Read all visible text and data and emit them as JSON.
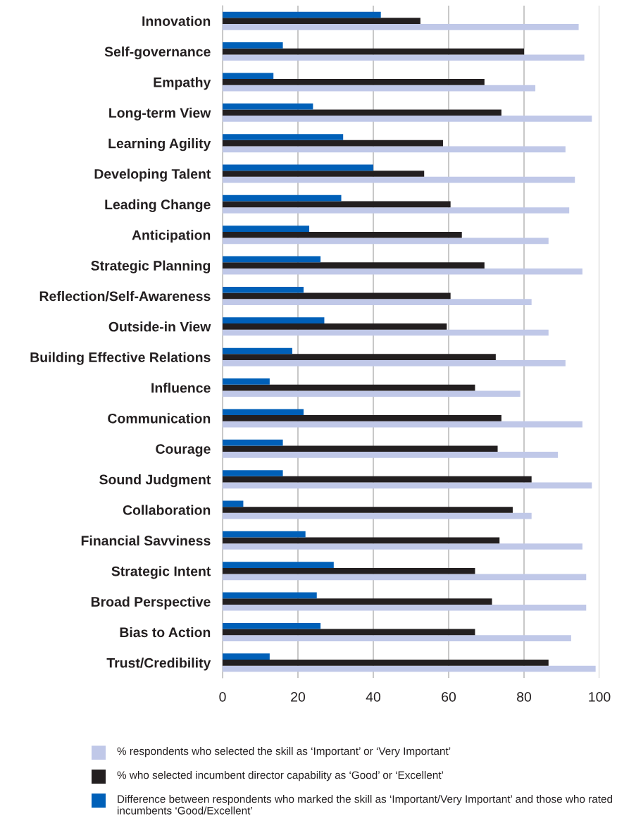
{
  "chart_data": {
    "type": "bar",
    "orientation": "horizontal",
    "categories": [
      "Innovation",
      "Self-governance",
      "Empathy",
      "Long-term View",
      "Learning Agility",
      "Developing Talent",
      "Leading Change",
      "Anticipation",
      "Strategic Planning",
      "Reflection/Self-Awareness",
      "Outside-in View",
      "Building Effective Relations",
      "Influence",
      "Communication",
      "Courage",
      "Sound Judgment",
      "Collaboration",
      "Financial Savviness",
      "Strategic Intent",
      "Broad Perspective",
      "Bias to Action",
      "Trust/Credibility"
    ],
    "series": [
      {
        "name": "% respondents who selected the skill as ‘Important’ or ‘Very Important’",
        "color": "#c0c8e8",
        "values": [
          94.5,
          96,
          83,
          98,
          91,
          93.5,
          92,
          86.5,
          95.5,
          82,
          86.5,
          91,
          79,
          95.5,
          89,
          98,
          82,
          95.5,
          96.5,
          96.5,
          92.5,
          99
        ]
      },
      {
        "name": "% who selected incumbent director capability as ‘Good’ or ‘Excellent’",
        "color": "#231f20",
        "values": [
          52.5,
          80,
          69.5,
          74,
          58.5,
          53.5,
          60.5,
          63.5,
          69.5,
          60.5,
          59.5,
          72.5,
          67,
          74,
          73,
          82,
          77,
          73.5,
          67,
          71.5,
          67,
          86.5
        ]
      },
      {
        "name": "Difference between respondents who marked the skill as ‘Important/Very Important’ and those who rated incumbents ‘Good/Excellent’",
        "color": "#0060b8",
        "values": [
          42,
          16,
          13.5,
          24,
          32,
          40,
          31.5,
          23,
          26,
          21.5,
          27,
          18.5,
          12.5,
          21.5,
          16,
          16,
          5.5,
          22,
          29.5,
          25,
          26,
          12.5
        ]
      }
    ],
    "xlim": [
      0,
      100
    ],
    "xticks": [
      0,
      20,
      40,
      60,
      80,
      100
    ],
    "grid": "x",
    "legend": "bottom"
  }
}
